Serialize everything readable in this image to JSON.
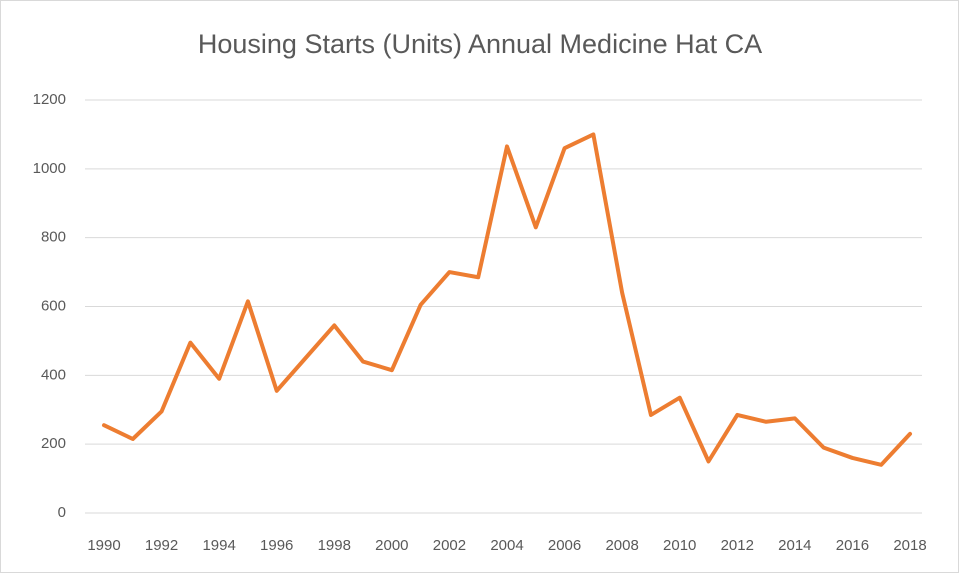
{
  "chart_data": {
    "type": "line",
    "title": "Housing Starts (Units) Annual Medicine Hat CA",
    "x": [
      1990,
      1991,
      1992,
      1993,
      1994,
      1995,
      1996,
      1997,
      1998,
      1999,
      2000,
      2001,
      2002,
      2003,
      2004,
      2005,
      2006,
      2007,
      2008,
      2009,
      2010,
      2011,
      2012,
      2013,
      2014,
      2015,
      2016,
      2017,
      2018
    ],
    "series": [
      {
        "name": "Housing Starts",
        "color": "#ed7d31",
        "values": [
          255,
          215,
          295,
          495,
          390,
          615,
          355,
          450,
          545,
          440,
          415,
          605,
          700,
          685,
          1065,
          830,
          1060,
          1100,
          640,
          285,
          335,
          150,
          285,
          265,
          275,
          190,
          160,
          140,
          230
        ]
      }
    ],
    "xlim": [
      1990,
      2018
    ],
    "xticks": [
      1990,
      1992,
      1994,
      1996,
      1998,
      2000,
      2002,
      2004,
      2006,
      2008,
      2010,
      2012,
      2014,
      2016,
      2018
    ],
    "ylim": [
      0,
      1200
    ],
    "yticks": [
      0,
      200,
      400,
      600,
      800,
      1000,
      1200
    ],
    "grid": true
  }
}
